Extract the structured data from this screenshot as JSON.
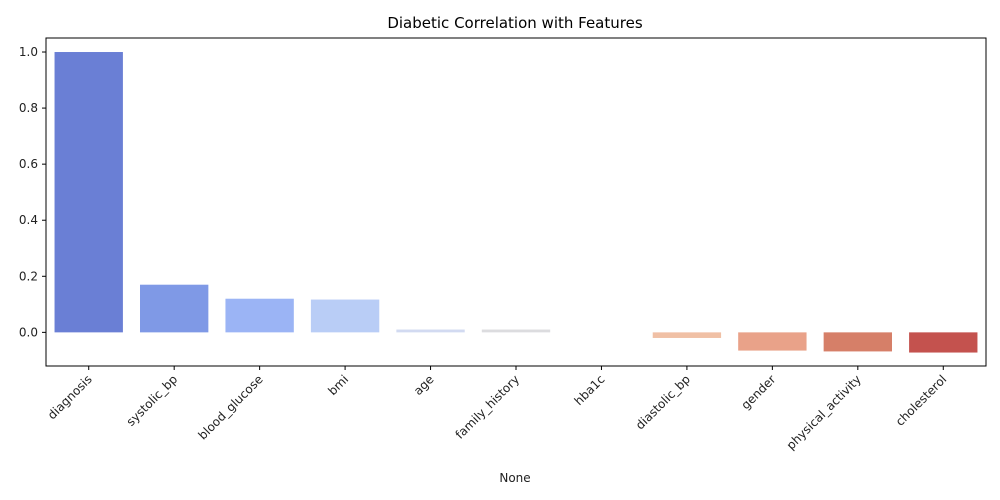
{
  "chart_data": {
    "type": "bar",
    "title": "Diabetic Correlation with Features",
    "xlabel": "None",
    "ylabel": "",
    "ylim": [
      -0.12,
      1.05
    ],
    "yticks": [
      0.0,
      0.2,
      0.4,
      0.6,
      0.8,
      1.0
    ],
    "ytick_labels": [
      "0.0",
      "0.2",
      "0.4",
      "0.6",
      "0.8",
      "1.0"
    ],
    "categories": [
      "diagnosis",
      "systolic_bp",
      "blood_glucose",
      "bmi",
      "age",
      "family_history",
      "hba1c",
      "diastolic_bp",
      "gender",
      "physical_activity",
      "cholesterol"
    ],
    "values": [
      1.0,
      0.17,
      0.12,
      0.117,
      0.01,
      0.01,
      0.0,
      -0.02,
      -0.065,
      -0.068,
      -0.072
    ],
    "colors": [
      "#6a7fd5",
      "#7f99e6",
      "#9bb4f5",
      "#b9cdf6",
      "#d2daf1",
      "#dcdcdf",
      "#e8dcd4",
      "#f0c0a5",
      "#e9a289",
      "#d67f68",
      "#c4524e"
    ],
    "grid": false,
    "legend": "none"
  }
}
